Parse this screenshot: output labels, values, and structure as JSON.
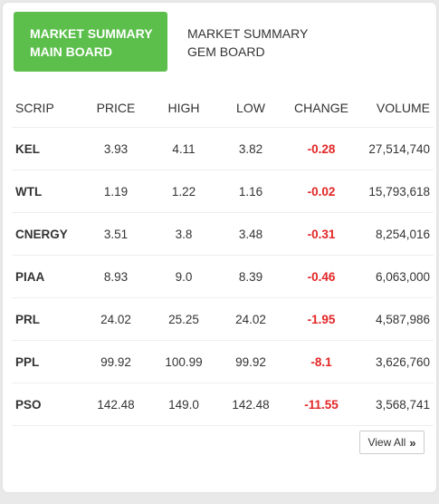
{
  "tabs": {
    "main_board": {
      "line1": "MARKET SUMMARY",
      "line2": "MAIN BOARD"
    },
    "gem_board": {
      "line1": "MARKET SUMMARY",
      "line2": "GEM BOARD"
    }
  },
  "table": {
    "headers": {
      "scrip": "SCRIP",
      "price": "PRICE",
      "high": "HIGH",
      "low": "LOW",
      "change": "CHANGE",
      "volume": "VOLUME"
    },
    "rows": [
      {
        "scrip": "KEL",
        "price": "3.93",
        "high": "4.11",
        "low": "3.82",
        "change": "-0.28",
        "volume": "27,514,740"
      },
      {
        "scrip": "WTL",
        "price": "1.19",
        "high": "1.22",
        "low": "1.16",
        "change": "-0.02",
        "volume": "15,793,618"
      },
      {
        "scrip": "CNERGY",
        "price": "3.51",
        "high": "3.8",
        "low": "3.48",
        "change": "-0.31",
        "volume": "8,254,016"
      },
      {
        "scrip": "PIAA",
        "price": "8.93",
        "high": "9.0",
        "low": "8.39",
        "change": "-0.46",
        "volume": "6,063,000"
      },
      {
        "scrip": "PRL",
        "price": "24.02",
        "high": "25.25",
        "low": "24.02",
        "change": "-1.95",
        "volume": "4,587,986"
      },
      {
        "scrip": "PPL",
        "price": "99.92",
        "high": "100.99",
        "low": "99.92",
        "change": "-8.1",
        "volume": "3,626,760"
      },
      {
        "scrip": "PSO",
        "price": "142.48",
        "high": "149.0",
        "low": "142.48",
        "change": "-11.55",
        "volume": "3,568,741"
      }
    ]
  },
  "footer": {
    "view_all_label": "View All",
    "view_all_icon": "double-chevron-right-icon"
  },
  "colors": {
    "active_tab": "#5cbf4c",
    "negative_change": "#e32626"
  }
}
